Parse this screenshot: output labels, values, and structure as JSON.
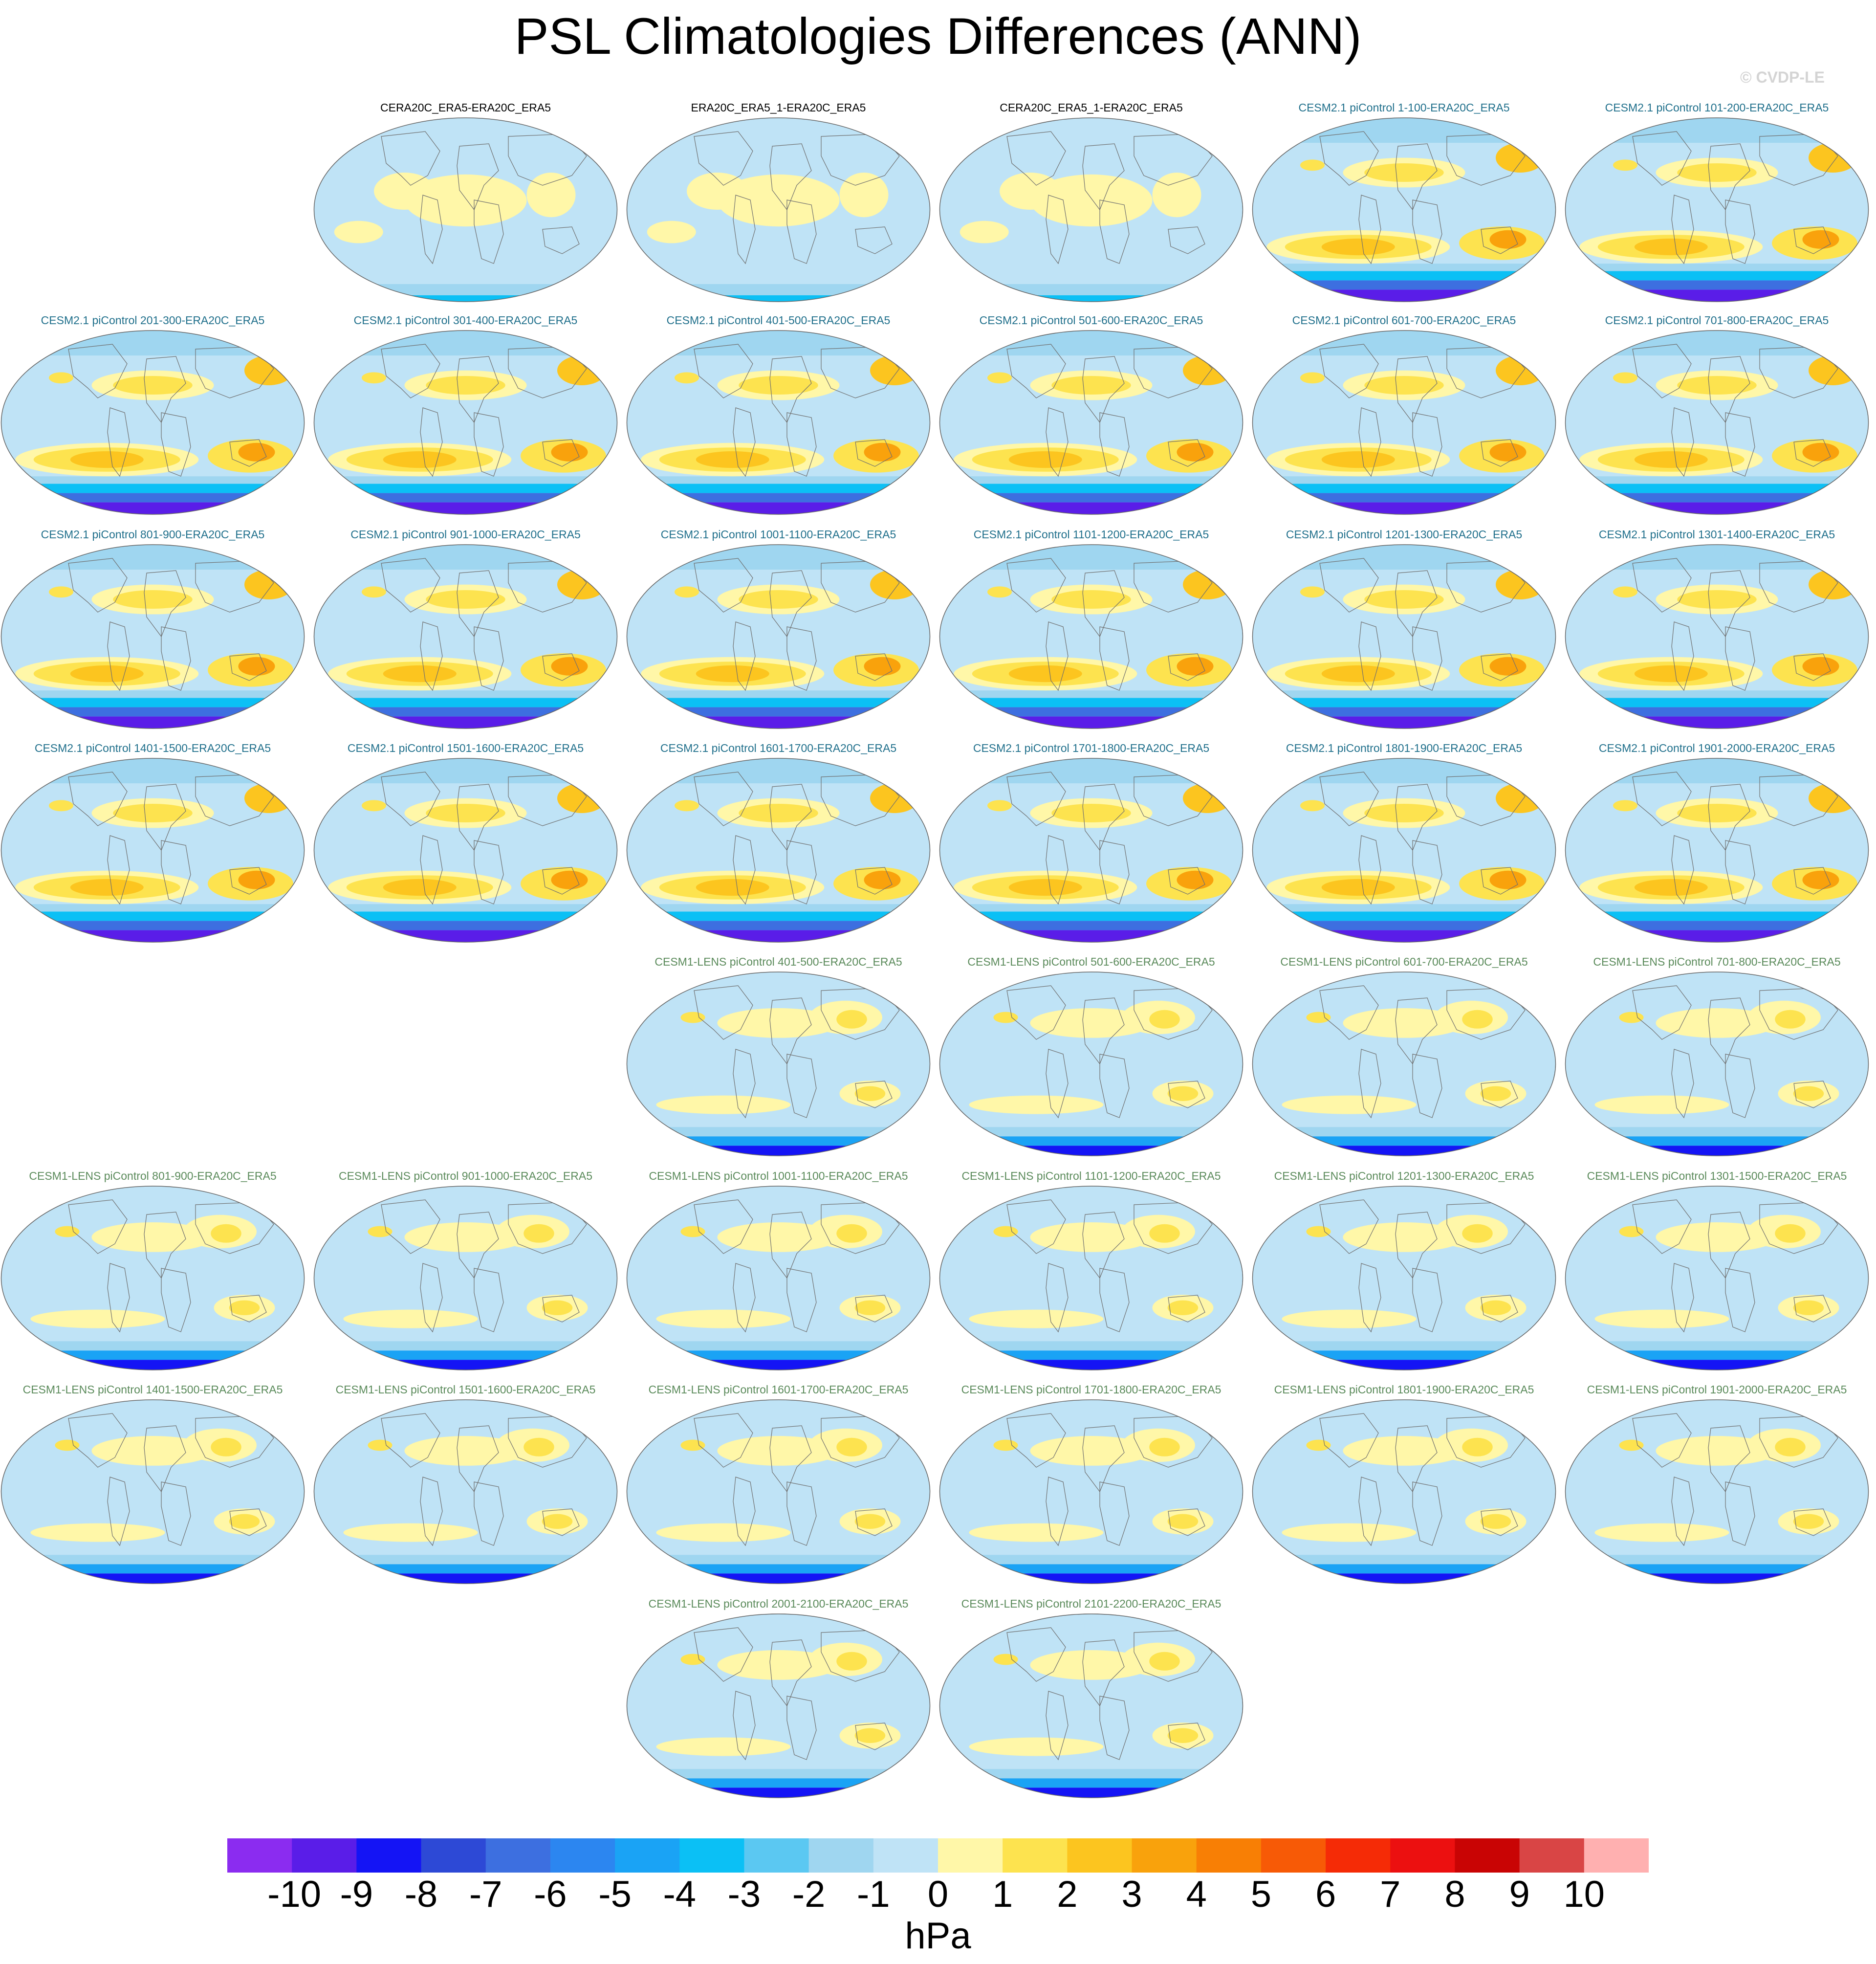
{
  "title": "PSL Climatologies Differences (ANN)",
  "watermark": "© CVDP-LE",
  "colors": {
    "obs_label": "#000000",
    "cesm2_label": "#1f6f8b",
    "cesm1_label": "#5a8a5a",
    "coast": "#6f6f6f",
    "map_edge": "#666666"
  },
  "chart_data": {
    "type": "heatmap",
    "variable": "PSL",
    "season": "ANN",
    "units": "hPa",
    "colorbar": {
      "levels": [
        -10,
        -9,
        -8,
        -7,
        -6,
        -5,
        -4,
        -3,
        -2,
        -1,
        0,
        1,
        2,
        3,
        4,
        5,
        6,
        7,
        8,
        9,
        10
      ],
      "colors": [
        "#8b2cf0",
        "#5a1de8",
        "#1414f5",
        "#2d49d6",
        "#3d6fe0",
        "#2c86f0",
        "#1aa3f5",
        "#0bc0f5",
        "#5bc8f2",
        "#9fd6f0",
        "#bfe3f6",
        "#fff7a8",
        "#fde34f",
        "#fcc51f",
        "#f9a20c",
        "#f87f05",
        "#f75a06",
        "#f52b06",
        "#ec1010",
        "#c90404",
        "#d94545",
        "#ffb0b0"
      ]
    },
    "panels": [
      {
        "label": "CERA20C_ERA5-ERA20C_ERA5",
        "group": "obs",
        "row": 0,
        "col": 1
      },
      {
        "label": "ERA20C_ERA5_1-ERA20C_ERA5",
        "group": "obs",
        "row": 0,
        "col": 2
      },
      {
        "label": "CERA20C_ERA5_1-ERA20C_ERA5",
        "group": "obs",
        "row": 0,
        "col": 3
      },
      {
        "label": "CESM2.1 piControl 1-100-ERA20C_ERA5",
        "group": "cesm2",
        "row": 0,
        "col": 4
      },
      {
        "label": "CESM2.1 piControl 101-200-ERA20C_ERA5",
        "group": "cesm2",
        "row": 0,
        "col": 5
      },
      {
        "label": "CESM2.1 piControl 201-300-ERA20C_ERA5",
        "group": "cesm2",
        "row": 1,
        "col": 0
      },
      {
        "label": "CESM2.1 piControl 301-400-ERA20C_ERA5",
        "group": "cesm2",
        "row": 1,
        "col": 1
      },
      {
        "label": "CESM2.1 piControl 401-500-ERA20C_ERA5",
        "group": "cesm2",
        "row": 1,
        "col": 2
      },
      {
        "label": "CESM2.1 piControl 501-600-ERA20C_ERA5",
        "group": "cesm2",
        "row": 1,
        "col": 3
      },
      {
        "label": "CESM2.1 piControl 601-700-ERA20C_ERA5",
        "group": "cesm2",
        "row": 1,
        "col": 4
      },
      {
        "label": "CESM2.1 piControl 701-800-ERA20C_ERA5",
        "group": "cesm2",
        "row": 1,
        "col": 5
      },
      {
        "label": "CESM2.1 piControl 801-900-ERA20C_ERA5",
        "group": "cesm2",
        "row": 2,
        "col": 0
      },
      {
        "label": "CESM2.1 piControl 901-1000-ERA20C_ERA5",
        "group": "cesm2",
        "row": 2,
        "col": 1
      },
      {
        "label": "CESM2.1 piControl 1001-1100-ERA20C_ERA5",
        "group": "cesm2",
        "row": 2,
        "col": 2
      },
      {
        "label": "CESM2.1 piControl 1101-1200-ERA20C_ERA5",
        "group": "cesm2",
        "row": 2,
        "col": 3
      },
      {
        "label": "CESM2.1 piControl 1201-1300-ERA20C_ERA5",
        "group": "cesm2",
        "row": 2,
        "col": 4
      },
      {
        "label": "CESM2.1 piControl 1301-1400-ERA20C_ERA5",
        "group": "cesm2",
        "row": 2,
        "col": 5
      },
      {
        "label": "CESM2.1 piControl 1401-1500-ERA20C_ERA5",
        "group": "cesm2",
        "row": 3,
        "col": 0
      },
      {
        "label": "CESM2.1 piControl 1501-1600-ERA20C_ERA5",
        "group": "cesm2",
        "row": 3,
        "col": 1
      },
      {
        "label": "CESM2.1 piControl 1601-1700-ERA20C_ERA5",
        "group": "cesm2",
        "row": 3,
        "col": 2
      },
      {
        "label": "CESM2.1 piControl 1701-1800-ERA20C_ERA5",
        "group": "cesm2",
        "row": 3,
        "col": 3
      },
      {
        "label": "CESM2.1 piControl 1801-1900-ERA20C_ERA5",
        "group": "cesm2",
        "row": 3,
        "col": 4
      },
      {
        "label": "CESM2.1 piControl 1901-2000-ERA20C_ERA5",
        "group": "cesm2",
        "row": 3,
        "col": 5
      },
      {
        "label": "CESM1-LENS piControl 401-500-ERA20C_ERA5",
        "group": "cesm1",
        "row": 4,
        "col": 2
      },
      {
        "label": "CESM1-LENS piControl 501-600-ERA20C_ERA5",
        "group": "cesm1",
        "row": 4,
        "col": 3
      },
      {
        "label": "CESM1-LENS piControl 601-700-ERA20C_ERA5",
        "group": "cesm1",
        "row": 4,
        "col": 4
      },
      {
        "label": "CESM1-LENS piControl 701-800-ERA20C_ERA5",
        "group": "cesm1",
        "row": 4,
        "col": 5
      },
      {
        "label": "CESM1-LENS piControl 801-900-ERA20C_ERA5",
        "group": "cesm1",
        "row": 5,
        "col": 0
      },
      {
        "label": "CESM1-LENS piControl 901-1000-ERA20C_ERA5",
        "group": "cesm1",
        "row": 5,
        "col": 1
      },
      {
        "label": "CESM1-LENS piControl 1001-1100-ERA20C_ERA5",
        "group": "cesm1",
        "row": 5,
        "col": 2
      },
      {
        "label": "CESM1-LENS piControl 1101-1200-ERA20C_ERA5",
        "group": "cesm1",
        "row": 5,
        "col": 3
      },
      {
        "label": "CESM1-LENS piControl 1201-1300-ERA20C_ERA5",
        "group": "cesm1",
        "row": 5,
        "col": 4
      },
      {
        "label": "CESM1-LENS piControl 1301-1500-ERA20C_ERA5",
        "group": "cesm1",
        "row": 5,
        "col": 5
      },
      {
        "label": "CESM1-LENS piControl 1401-1500-ERA20C_ERA5",
        "group": "cesm1",
        "row": 6,
        "col": 0
      },
      {
        "label": "CESM1-LENS piControl 1501-1600-ERA20C_ERA5",
        "group": "cesm1",
        "row": 6,
        "col": 1
      },
      {
        "label": "CESM1-LENS piControl 1601-1700-ERA20C_ERA5",
        "group": "cesm1",
        "row": 6,
        "col": 2
      },
      {
        "label": "CESM1-LENS piControl 1701-1800-ERA20C_ERA5",
        "group": "cesm1",
        "row": 6,
        "col": 3
      },
      {
        "label": "CESM1-LENS piControl 1801-1900-ERA20C_ERA5",
        "group": "cesm1",
        "row": 6,
        "col": 4
      },
      {
        "label": "CESM1-LENS piControl 1901-2000-ERA20C_ERA5",
        "group": "cesm1",
        "row": 6,
        "col": 5
      },
      {
        "label": "CESM1-LENS piControl 2001-2100-ERA20C_ERA5",
        "group": "cesm1",
        "row": 7,
        "col": 2
      },
      {
        "label": "CESM1-LENS piControl 2101-2200-ERA20C_ERA5",
        "group": "cesm1",
        "row": 7,
        "col": 3
      }
    ]
  }
}
